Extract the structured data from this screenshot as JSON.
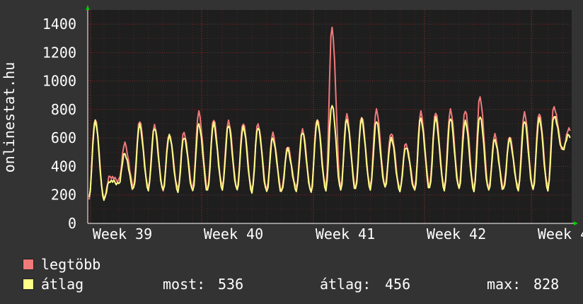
{
  "chart_data": {
    "type": "line",
    "ylabel": "onlinestat.hu",
    "ylim": [
      0,
      1500
    ],
    "yticks": [
      0,
      200,
      400,
      600,
      800,
      1000,
      1200,
      1400
    ],
    "xlabels": [
      "Week 39",
      "Week 40",
      "Week 41",
      "Week 42",
      "Week 4"
    ],
    "grid": true,
    "colors": {
      "background": "#333333",
      "plot": "#1e1e1e",
      "grid": "#7a2a2a",
      "axis": "#ffffff",
      "arrow": "#00cc00"
    },
    "series": [
      {
        "name": "legtöbb",
        "color": "#f07a7a",
        "daily_peaks": [
          740,
          330,
          560,
          720,
          690,
          630,
          640,
          780,
          730,
          720,
          710,
          700,
          630,
          540,
          660,
          740,
          1380,
          760,
          750,
          800,
          640,
          560,
          780,
          780,
          800,
          800,
          890,
          620,
          610,
          780,
          780,
          820,
          660
        ],
        "daily_troughs": [
          180,
          180,
          300,
          260,
          250,
          240,
          250,
          250,
          240,
          260,
          250,
          240,
          240,
          230,
          250,
          230,
          260,
          250,
          250,
          260,
          270,
          250,
          250,
          260,
          250,
          260,
          250,
          250,
          250,
          250,
          250,
          260,
          520
        ]
      },
      {
        "name": "átlag",
        "color": "#ffff88",
        "daily_peaks": [
          720,
          300,
          490,
          690,
          670,
          620,
          610,
          700,
          700,
          690,
          680,
          680,
          600,
          520,
          640,
          720,
          840,
          730,
          730,
          720,
          600,
          540,
          740,
          740,
          740,
          720,
          760,
          590,
          590,
          720,
          740,
          760,
          620
        ],
        "daily_troughs": [
          180,
          175,
          280,
          240,
          235,
          230,
          230,
          230,
          225,
          240,
          230,
          225,
          225,
          220,
          230,
          215,
          240,
          235,
          235,
          240,
          250,
          235,
          235,
          240,
          235,
          240,
          235,
          235,
          235,
          235,
          235,
          240,
          520
        ]
      }
    ]
  },
  "legend": {
    "items": [
      {
        "label": "legtöbb",
        "color": "#f07a7a"
      },
      {
        "label": "átlag",
        "color": "#ffff88"
      }
    ],
    "stats": [
      {
        "label": "most:",
        "value": "536"
      },
      {
        "label": "átlag:",
        "value": "456"
      },
      {
        "label": "max:",
        "value": "828"
      }
    ]
  }
}
